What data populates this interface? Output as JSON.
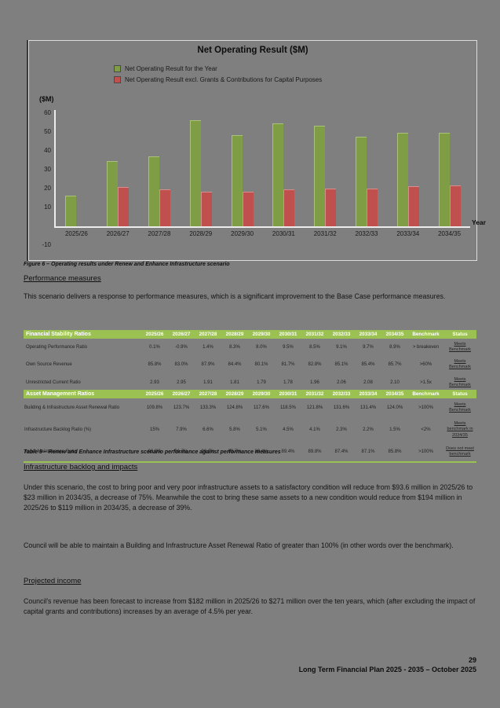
{
  "page_bg": "#7f7f7f",
  "chart_data": {
    "type": "bar",
    "title": "Net Operating Result ($M)",
    "ylabel": "($M)",
    "xlabel": "Year",
    "ylim": [
      -10,
      60
    ],
    "yticks": [
      60,
      50,
      40,
      30,
      20,
      10,
      -10
    ],
    "grid": false,
    "legend_position": "top-left",
    "categories": [
      "2025/26",
      "2026/27",
      "2027/28",
      "2028/29",
      "2029/30",
      "2030/31",
      "2031/32",
      "2032/33",
      "2033/34",
      "2034/35"
    ],
    "series": [
      {
        "name": "Net Operating Result for the Year",
        "color": "#7e9d45",
        "values": [
          16,
          34,
          36.5,
          56,
          48,
          54,
          53,
          47,
          49,
          49
        ]
      },
      {
        "name": "Net Operating Result excl. Grants & Contributions for Capital Purposes",
        "color": "#c0504d",
        "values": [
          0,
          20.5,
          19,
          18,
          18,
          19,
          19.5,
          19.7,
          21,
          21.3
        ]
      }
    ]
  },
  "content": {
    "figure_caption": "Figure 6 – Operating results under Renew and Enhance Infrastructure scenario",
    "heading_performance": "Performance measures",
    "para_performance": "This scenario delivers a response to performance measures, which is a significant improvement to the Base Case performance measures.",
    "table_caption": "Table 9 – Renew and Enhance Infrastructure scenario performance against performance measures",
    "heading_backlog": "Infrastructure backlog and impacts",
    "para_backlog_1": "Under this scenario, the cost to bring poor and very poor infrastructure assets to a satisfactory condition will reduce from $93.6 million in 2025/26 to $23 million in 2034/35, a decrease of 75%. Meanwhile the cost to bring these same assets to a new condition would reduce from $194 million in 2025/26 to $119 million in 2034/35, a decrease of 39%.",
    "para_backlog_2": "Council will be able to maintain a Building and Infrastructure Asset Renewal Ratio of greater than 100% (in other words over the benchmark).",
    "heading_income": "Projected income",
    "para_income": "Council's revenue has been forecast to increase from $182 million in 2025/26 to $271 million over the ten years, which (after excluding the impact of capital grants and contributions) increases by an average of 4.5% per year."
  },
  "tables": [
    {
      "header_label": "Financial Stability Ratios",
      "year_columns": [
        "2025/26",
        "2026/27",
        "2027/28",
        "2028/29",
        "2029/30",
        "2030/31",
        "2031/32",
        "2032/33",
        "2033/34",
        "2034/35"
      ],
      "benchmark_col": "Benchmark",
      "status_col": "Status",
      "rows": [
        {
          "label": "Operating Performance Ratio",
          "values": [
            "0.1%",
            "-0.9%",
            "1.4%",
            "8.3%",
            "8.0%",
            "9.5%",
            "8.5%",
            "9.1%",
            "9.7%",
            "8.9%"
          ],
          "benchmark": "> breakeven",
          "status": "Meets Benchmark"
        },
        {
          "label": "Own Source Revenue",
          "values": [
            "85.8%",
            "83.0%",
            "87.9%",
            "84.4%",
            "80.1%",
            "81.7%",
            "82.8%",
            "85.1%",
            "85.4%",
            "85.7%"
          ],
          "benchmark": ">60%",
          "status": "Meets Benchmark"
        },
        {
          "label": "Unrestricted Current Ratio",
          "values": [
            "2.93",
            "2.95",
            "1.91",
            "1.81",
            "1.79",
            "1.78",
            "1.96",
            "2.06",
            "2.08",
            "2.10"
          ],
          "benchmark": ">1.5x",
          "status": "Meets Benchmark"
        }
      ]
    },
    {
      "header_label": "Asset Management Ratios",
      "year_columns": [
        "2025/26",
        "2026/27",
        "2027/28",
        "2028/29",
        "2029/30",
        "2030/31",
        "2031/32",
        "2032/33",
        "2033/34",
        "2034/35"
      ],
      "benchmark_col": "Benchmark",
      "status_col": "Status",
      "rows": [
        {
          "label": "Building & Infrastructure Asset Renewal Ratio",
          "values": [
            "109.8%",
            "123.7%",
            "133.3%",
            "124.8%",
            "117.6%",
            "118.5%",
            "121.8%",
            "131.6%",
            "131.4%",
            "124.0%"
          ],
          "benchmark": ">100%",
          "status": "Meets Benchmark"
        },
        {
          "label": "Infrastructure Backlog Ratio (%)",
          "values": [
            "15%",
            "7.9%",
            "6.6%",
            "5.8%",
            "5.1%",
            "4.5%",
            "4.1%",
            "2.3%",
            "2.2%",
            "1.5%"
          ],
          "benchmark": "<2%",
          "status": "Meets benchmark in 2034/35"
        },
        {
          "label": "Asset Maintenance Ratio",
          "values": [
            "93.8%",
            "91.7%",
            "90.6%",
            "89.7%",
            "89.4%",
            "89.4%",
            "89.8%",
            "87.4%",
            "87.1%",
            "85.8%"
          ],
          "benchmark": ">100%",
          "status": "Does not meet benchmark"
        }
      ]
    }
  ],
  "footer": {
    "page_number": "29",
    "doc_title": "Long Term Financial Plan 2025 - 2035 – October 2025"
  }
}
